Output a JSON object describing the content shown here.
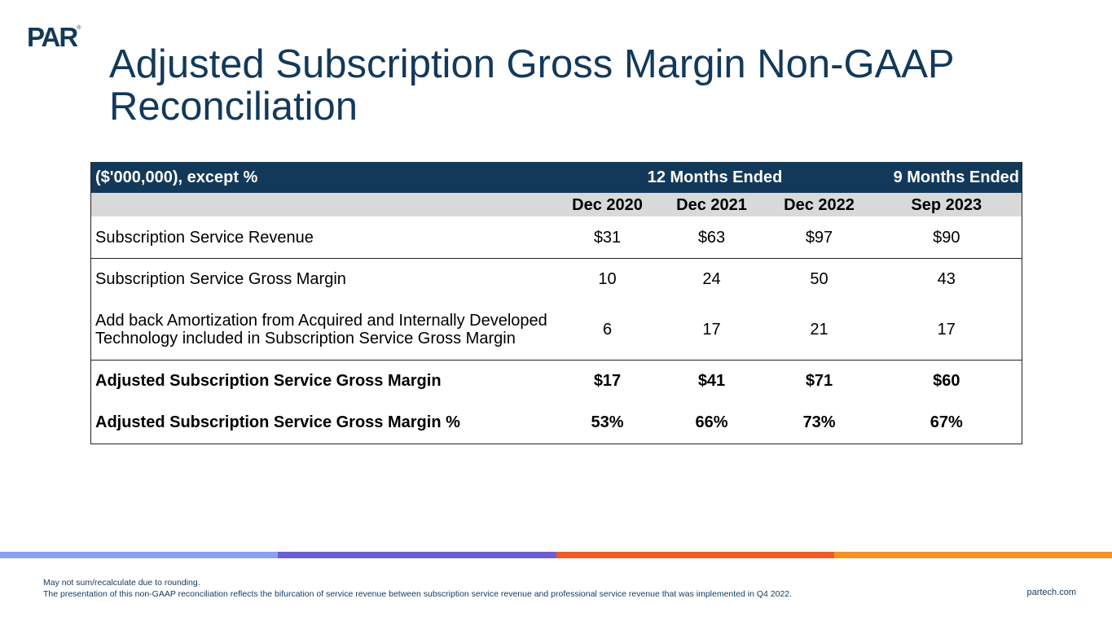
{
  "logo": {
    "text": "PAR",
    "mark": "®"
  },
  "title": "Adjusted Subscription Gross Margin Non-GAAP Reconciliation",
  "table": {
    "unit_label": "($'000,000), except %",
    "group_12": "12 Months Ended",
    "group_9": "9 Months Ended",
    "periods": [
      "Dec 2020",
      "Dec 2021",
      "Dec 2022",
      "Sep 2023"
    ],
    "rows": [
      {
        "label": "Subscription Service Revenue",
        "values": [
          "$31",
          "$63",
          "$97",
          "$90"
        ]
      },
      {
        "label": "Subscription Service Gross Margin",
        "values": [
          "10",
          "24",
          "50",
          "43"
        ]
      },
      {
        "label": "Add back Amortization from Acquired and Internally Developed Technology included in Subscription Service Gross Margin",
        "values": [
          "6",
          "17",
          "21",
          "17"
        ]
      },
      {
        "label": "Adjusted Subscription Service Gross Margin",
        "values": [
          "$17",
          "$41",
          "$71",
          "$60"
        ]
      },
      {
        "label": "Adjusted Subscription Service Gross Margin %",
        "values": [
          "53%",
          "66%",
          "73%",
          "67%"
        ]
      }
    ]
  },
  "colors": {
    "navy": "#13395a",
    "bar": [
      "#8aa1f2",
      "#6b5fcf",
      "#f05a28",
      "#f39325"
    ]
  },
  "footnote": {
    "line1": "May not sum/recalculate due to rounding.",
    "line2": "The presentation of this non-GAAP reconciliation reflects the bifurcation of service revenue between subscription service revenue and professional service revenue that was implemented in Q4 2022."
  },
  "website": "partech.com"
}
